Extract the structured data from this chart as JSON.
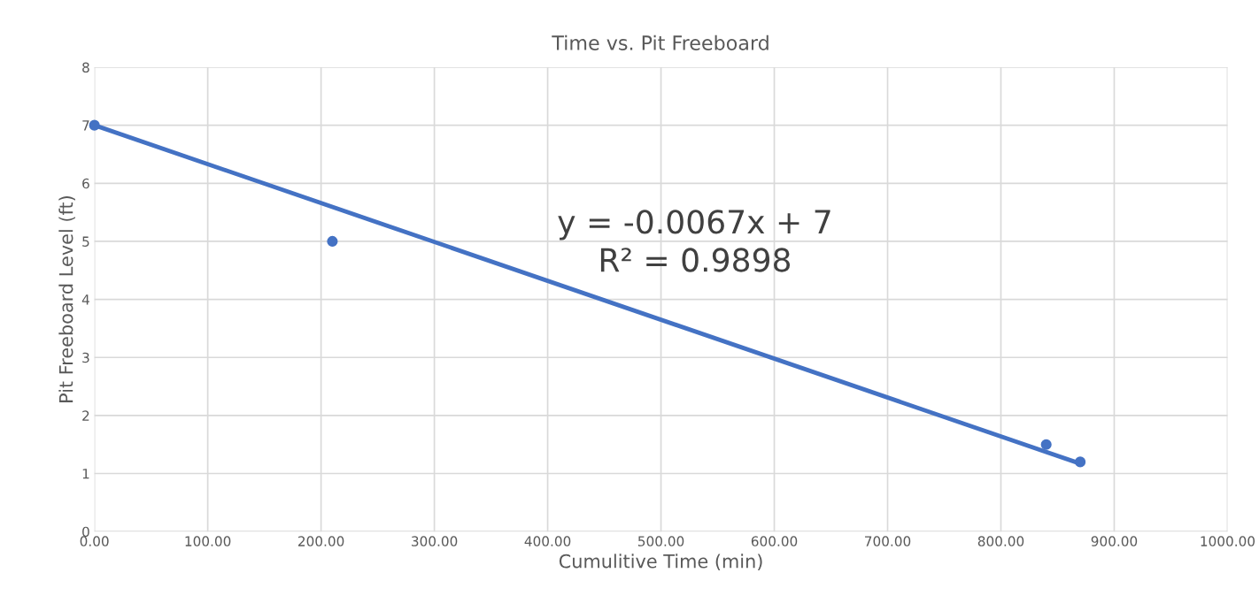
{
  "chart_data": {
    "type": "scatter",
    "title": "Time vs. Pit Freeboard",
    "xlabel": "Cumulitive Time (min)",
    "ylabel": "Pit Freeboard Level (ft)",
    "series": [
      {
        "color": "#4472c4",
        "marker": "circle",
        "x": [
          0,
          210,
          840,
          870
        ],
        "values": [
          7,
          5,
          1.5,
          1.2
        ]
      },
      {
        "type": "line",
        "color": "#4472c4",
        "marker": "none",
        "x": [
          0,
          870
        ],
        "values": [
          7,
          1.17
        ]
      }
    ],
    "annotations": [
      "y = -0.0067x + 7\nR² = 0.9898"
    ],
    "xlim": [
      0,
      1000
    ],
    "xticks": [
      {
        "value": 0,
        "label": "0.00"
      },
      {
        "value": 100,
        "label": "100.00"
      },
      {
        "value": 200,
        "label": "200.00"
      },
      {
        "value": 300,
        "label": "300.00"
      },
      {
        "value": 400,
        "label": "400.00"
      },
      {
        "value": 500,
        "label": "500.00"
      },
      {
        "value": 600,
        "label": "600.00"
      },
      {
        "value": 700,
        "label": "700.00"
      },
      {
        "value": 800,
        "label": "800.00"
      },
      {
        "value": 900,
        "label": "900.00"
      },
      {
        "value": 1000,
        "label": "1000.00"
      }
    ],
    "ylim": [
      0,
      8
    ],
    "yticks": [
      0,
      1,
      2,
      3,
      4,
      5,
      6,
      7,
      8
    ],
    "grid": true,
    "legend": false,
    "line_style": "solid"
  }
}
